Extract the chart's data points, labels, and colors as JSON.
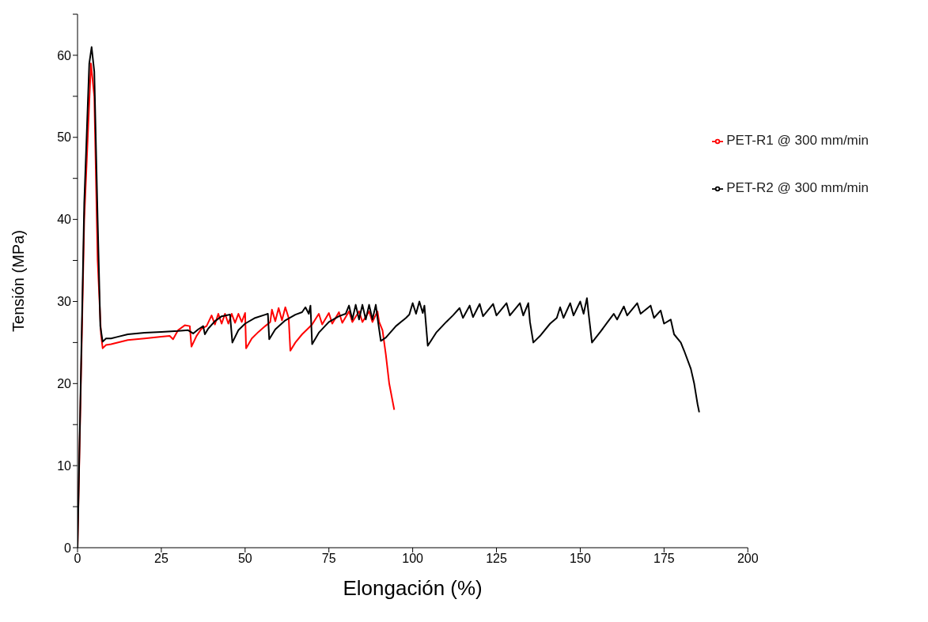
{
  "chart_data": {
    "type": "line",
    "xlabel": "Elongación (%)",
    "ylabel": "Tensión (MPa)",
    "xlim": [
      0,
      200
    ],
    "xticks": [
      0,
      25,
      50,
      75,
      100,
      125,
      150,
      175,
      200
    ],
    "ylim": [
      0,
      65
    ],
    "yticks": [
      0,
      {
        "value": 5,
        "label": null
      },
      10,
      {
        "value": 15,
        "label": null
      },
      20,
      {
        "value": 25,
        "label": null
      },
      30,
      {
        "value": 35,
        "label": null
      },
      40,
      {
        "value": 45,
        "label": null
      },
      50,
      {
        "value": 55,
        "label": null
      },
      60,
      {
        "value": 65,
        "label": null
      }
    ],
    "grid": false,
    "legend": "top right",
    "marker": "none",
    "line_style": "solid",
    "series": [
      {
        "name": "PET-R1 @ 300 mm/min",
        "color": "#ff0000",
        "x": [
          0,
          2,
          4,
          5,
          6,
          7,
          7.5,
          8.5,
          10,
          15,
          20,
          25,
          27.5,
          28.5,
          30,
          32,
          33.5,
          34,
          35.5,
          37,
          38.5,
          40,
          41,
          42,
          43,
          44,
          45,
          46,
          47,
          48,
          49,
          50,
          50.3,
          52,
          54,
          56,
          57.5,
          58,
          59,
          60,
          61,
          62,
          63,
          63.5,
          65,
          67,
          69,
          70,
          72,
          73,
          75,
          76,
          78,
          79,
          81,
          82,
          84,
          85,
          87,
          88,
          89.5,
          90,
          91,
          92,
          93,
          94.5
        ],
        "values": [
          0,
          40,
          59,
          55,
          35,
          26,
          24.3,
          24.7,
          24.8,
          25.3,
          25.5,
          25.7,
          25.8,
          25.4,
          26.5,
          27.1,
          27,
          24.5,
          25.8,
          26.7,
          27,
          28.3,
          27.2,
          28.5,
          27.3,
          28.5,
          27.3,
          28.5,
          27.4,
          28.5,
          27.5,
          28.6,
          24.3,
          25.5,
          26.3,
          27,
          27.5,
          29,
          27.6,
          29.2,
          27.7,
          29.3,
          28,
          24,
          25,
          26,
          26.8,
          27.2,
          28.5,
          27.2,
          28.6,
          27.3,
          28.7,
          27.4,
          28.8,
          27.5,
          28.8,
          27.5,
          28.8,
          27.5,
          28.8,
          27.5,
          26.5,
          23.5,
          20,
          16.8
        ]
      },
      {
        "name": "PET-R2 @ 300 mm/min",
        "color": "#000000",
        "x": [
          0,
          2,
          3.5,
          4.2,
          5,
          6,
          6.8,
          7.5,
          8.5,
          10,
          12,
          15,
          20,
          25,
          30,
          33,
          34.5,
          36,
          37.5,
          38,
          39,
          41,
          43,
          45.5,
          46.2,
          48,
          50,
          53,
          56,
          56.8,
          57.2,
          59,
          62,
          65,
          67,
          68,
          69,
          69.5,
          70,
          72,
          75,
          78,
          80,
          81,
          82,
          83,
          84,
          85,
          86,
          87,
          88,
          89,
          89.5,
          90.5,
          92,
          95,
          98,
          99,
          100,
          101,
          102,
          103,
          103.5,
          104.5,
          107,
          110,
          112,
          114,
          115,
          117,
          118,
          120,
          121,
          124,
          125,
          128,
          129,
          132,
          133,
          134.5,
          135,
          136,
          138,
          141,
          143,
          144,
          145,
          147,
          148,
          150,
          151,
          152,
          152.5,
          153.5,
          156,
          158,
          160,
          161,
          163,
          164,
          167,
          168,
          171,
          172,
          174,
          175,
          177,
          178,
          180,
          181,
          183,
          184,
          185,
          185.5
        ],
        "values": [
          0,
          42,
          59,
          61,
          58,
          40,
          27,
          25.1,
          25.5,
          25.5,
          25.7,
          26,
          26.2,
          26.3,
          26.4,
          26.5,
          26.1,
          26.6,
          27,
          26,
          26.7,
          27.6,
          28.2,
          28.4,
          25,
          26.5,
          27.3,
          28,
          28.4,
          28.5,
          25.4,
          26.6,
          27.7,
          28.4,
          28.7,
          29.3,
          28.5,
          29.5,
          24.8,
          26.2,
          27.5,
          28.2,
          28.5,
          29.5,
          27.8,
          29.6,
          27.8,
          29.6,
          27.8,
          29.6,
          27.8,
          29.6,
          28,
          25.2,
          25.6,
          27,
          28,
          28.4,
          29.8,
          28.5,
          30,
          28.6,
          29.5,
          24.6,
          26.2,
          27.5,
          28.3,
          29.2,
          28,
          29.5,
          28.1,
          29.7,
          28.2,
          29.7,
          28.3,
          29.8,
          28.3,
          29.8,
          28.3,
          29.8,
          27.5,
          25,
          25.8,
          27.3,
          28,
          29.3,
          28,
          29.8,
          28.3,
          30,
          28.5,
          30.4,
          28.5,
          25,
          26.3,
          27.4,
          28.5,
          27.8,
          29.4,
          28.3,
          29.8,
          28.5,
          29.5,
          28,
          28.9,
          27.3,
          27.8,
          26,
          25,
          24,
          21.8,
          20,
          17.5,
          16.5
        ]
      }
    ]
  }
}
